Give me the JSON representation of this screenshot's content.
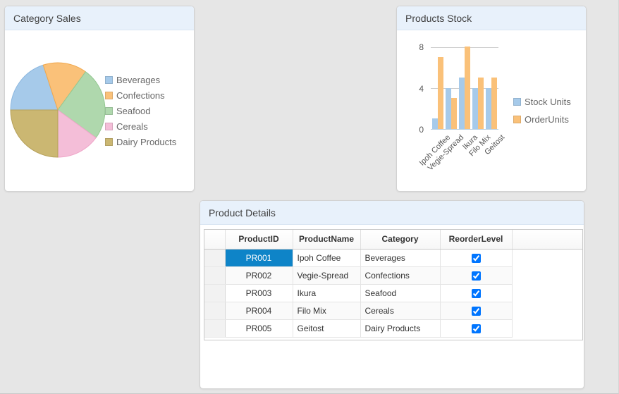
{
  "app": {
    "background": "#e6e6e6"
  },
  "panels": {
    "category_sales": {
      "title": "Category Sales"
    },
    "products_stock": {
      "title": "Products Stock"
    },
    "product_details": {
      "title": "Product Details"
    }
  },
  "chart_data": [
    {
      "type": "pie",
      "title": "Category Sales",
      "categories": [
        "Beverages",
        "Confections",
        "Seafood",
        "Cereals",
        "Dairy Products"
      ],
      "values": [
        20,
        15,
        25,
        15,
        25
      ],
      "unit": "percent",
      "colors": [
        "#a6caea",
        "#fac179",
        "#afd8ad",
        "#f4bed8",
        "#cbb772"
      ],
      "stroke_colors": [
        "#8cb7df",
        "#f0a84e",
        "#94c892",
        "#efa5c8",
        "#b5a05a"
      ],
      "start_angle": 180,
      "direction": "clockwise",
      "legend_position": "right"
    },
    {
      "type": "bar",
      "title": "Products Stock",
      "categories": [
        "Ipoh Coffee",
        "Vegie-Spread",
        "Ikura",
        "Filo Mix",
        "Geitost"
      ],
      "series": [
        {
          "name": "Stock Units",
          "color": "#a6caea",
          "values": [
            1,
            4,
            5,
            4,
            4
          ]
        },
        {
          "name": "OrderUnits",
          "color": "#fac179",
          "values": [
            7,
            3,
            8,
            5,
            5
          ]
        }
      ],
      "ylim": [
        0,
        8
      ],
      "yticks": [
        "0",
        "4",
        "8"
      ],
      "grid": true,
      "xlabel_rotation": -45,
      "legend_position": "right"
    }
  ],
  "product_details": {
    "columns": [
      "",
      "ProductID",
      "ProductName",
      "Category",
      "ReorderLevel"
    ],
    "rows": [
      {
        "product_id": "PR001",
        "product_name": "Ipoh Coffee",
        "category": "Beverages",
        "reorder_level": "checked",
        "selected": true
      },
      {
        "product_id": "PR002",
        "product_name": "Vegie-Spread",
        "category": "Confections",
        "reorder_level": "checked",
        "selected": false
      },
      {
        "product_id": "PR003",
        "product_name": "Ikura",
        "category": "Seafood",
        "reorder_level": "checked",
        "selected": false
      },
      {
        "product_id": "PR004",
        "product_name": "Filo Mix",
        "category": "Cereals",
        "reorder_level": "checked",
        "selected": false
      },
      {
        "product_id": "PR005",
        "product_name": "Geitost",
        "category": "Dairy Products",
        "reorder_level": "checked",
        "selected": false
      }
    ],
    "selected_cell": "PR001"
  },
  "colors": {
    "selected_cell_bg": "#0e84c8",
    "panel_header_bg": "#e8f1fb",
    "grid_line": "#cccccc",
    "page_background": "#e6e6e6"
  }
}
